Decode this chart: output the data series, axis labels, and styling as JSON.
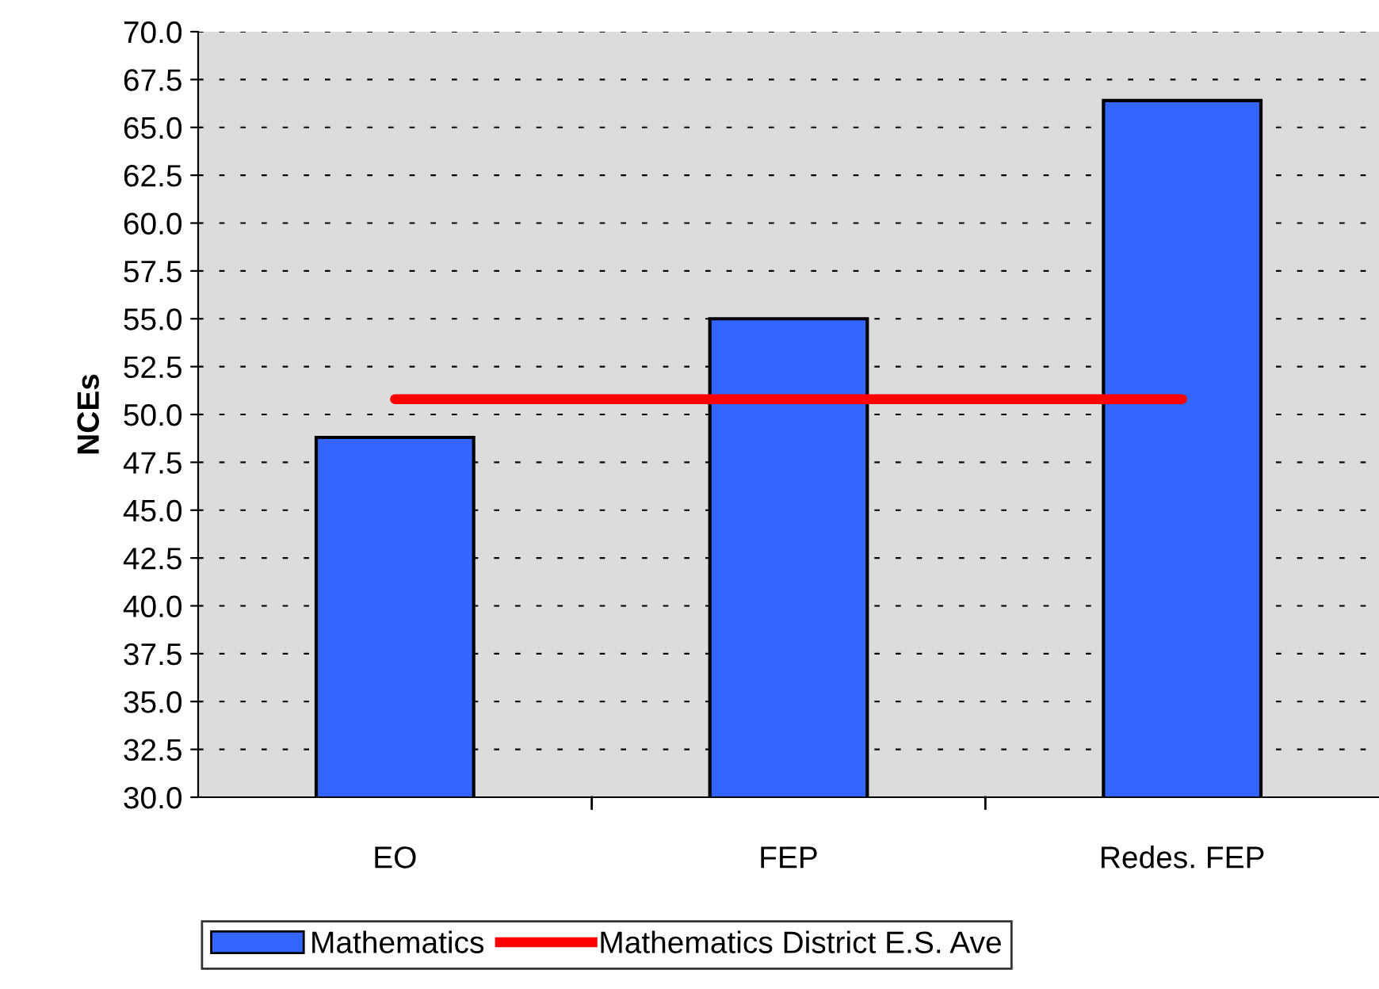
{
  "chart_data": {
    "type": "bar",
    "ylabel": "NCEs",
    "categories": [
      "EO",
      "FEP",
      "Redes. FEP"
    ],
    "series": [
      {
        "name": "Mathematics",
        "color": "#3366ff",
        "values": [
          48.8,
          55.0,
          66.4
        ]
      },
      {
        "name": "Mathematics District E.S. Ave",
        "type": "line",
        "color": "#ff0000",
        "values": [
          50.8,
          50.8,
          50.8
        ]
      }
    ],
    "ylim": [
      30,
      70
    ],
    "yticks": [
      {
        "value": 30,
        "label": "30.0"
      },
      {
        "value": 32.5,
        "label": "32.5"
      },
      {
        "value": 35,
        "label": "35.0"
      },
      {
        "value": 37.5,
        "label": "37.5"
      },
      {
        "value": 40,
        "label": "40.0"
      },
      {
        "value": 42.5,
        "label": "42.5"
      },
      {
        "value": 45,
        "label": "45.0"
      },
      {
        "value": 47.5,
        "label": "47.5"
      },
      {
        "value": 50,
        "label": "50.0"
      },
      {
        "value": 52.5,
        "label": "52.5"
      },
      {
        "value": 55,
        "label": "55.0"
      },
      {
        "value": 57.5,
        "label": "57.5"
      },
      {
        "value": 60,
        "label": "60.0"
      },
      {
        "value": 62.5,
        "label": "62.5"
      },
      {
        "value": 65,
        "label": "65.0"
      },
      {
        "value": 67.5,
        "label": "67.5"
      },
      {
        "value": 70,
        "label": "70.0"
      }
    ],
    "grid": "y",
    "legend": "bottom"
  }
}
